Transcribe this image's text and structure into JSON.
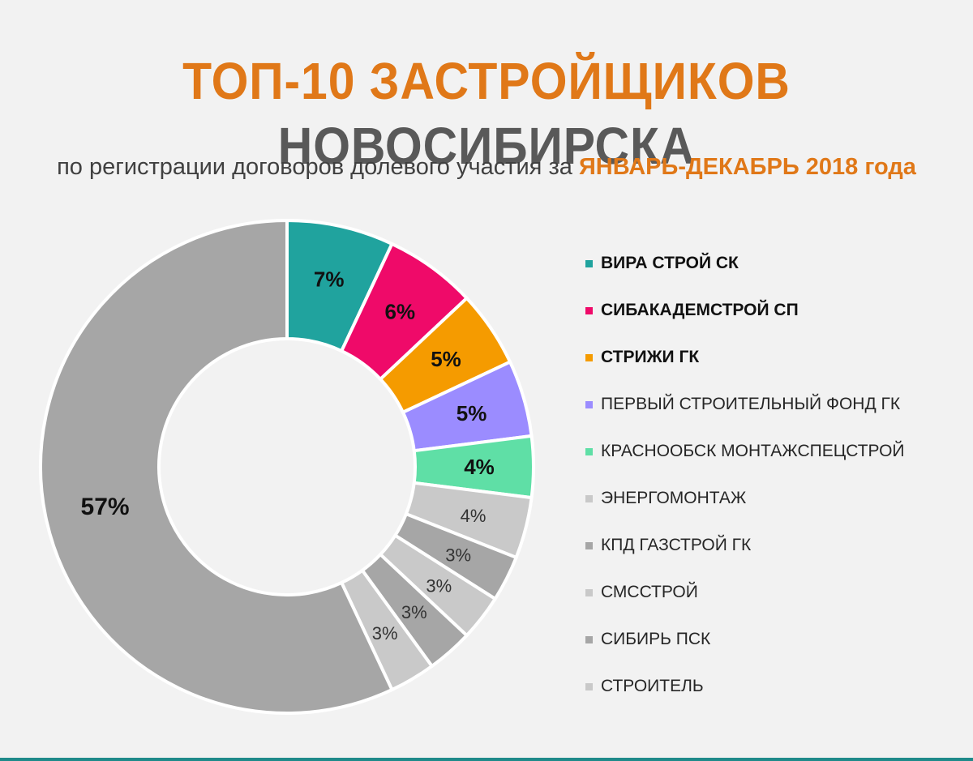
{
  "title": {
    "part1": "ТОП-10 ЗАСТРОЙЩИКОВ",
    "part2": "НОВОСИБИРСКА"
  },
  "subtitle": {
    "text": "по регистрации договоров долевого участия за",
    "highlight": "ЯНВАРЬ-ДЕКАБРЬ  2018 года"
  },
  "chart_data": {
    "type": "pie",
    "variant": "donut",
    "categories": [
      "ВИРА СТРОЙ СК",
      "СИБАКАДЕМСТРОЙ  СП",
      "СТРИЖИ ГК",
      "ПЕРВЫЙ СТРОИТЕЛЬНЫЙ  ФОНД ГК",
      "КРАСНООБСК МОНТАЖСПЕЦСТРОЙ",
      "ЭНЕРГОМОНТАЖ",
      "КПД ГАЗСТРОЙ ГК",
      "СМССТРОЙ",
      "СИБИРЬ ПСК",
      "СТРОИТЕЛЬ",
      ""
    ],
    "values": [
      7,
      6,
      5,
      5,
      4,
      4,
      3,
      3,
      3,
      3,
      57
    ],
    "labels": [
      "7%",
      "6%",
      "5%",
      "5%",
      "4%",
      "4%",
      "3%",
      "3%",
      "3%",
      "3%",
      "57%"
    ],
    "colors": [
      "#20a39e",
      "#ef0a69",
      "#f59b00",
      "#9b8cff",
      "#5fdfa6",
      "#c9c9c9",
      "#a6a6a6",
      "#c9c9c9",
      "#a6a6a6",
      "#c9c9c9",
      "#a6a6a6"
    ],
    "label_bold": [
      true,
      true,
      true,
      true,
      true,
      false,
      false,
      false,
      false,
      false,
      true
    ],
    "legend_bold": [
      true,
      true,
      true,
      false,
      false,
      false,
      false,
      false,
      false,
      false
    ],
    "legend_placement": "right"
  }
}
